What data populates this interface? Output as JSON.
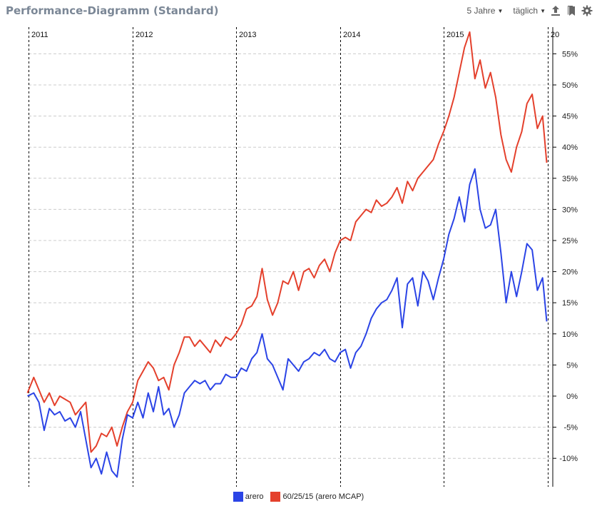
{
  "header": {
    "title": "Performance-Diagramm (Standard)",
    "period_label": "5 Jahre",
    "interval_label": "täglich",
    "icons": [
      "upload-icon",
      "bookmark-icon",
      "gear-icon"
    ]
  },
  "colors": {
    "arero": "#2b44e6",
    "mcap": "#e4402c",
    "grid": "#cccccc",
    "year_line": "#000000"
  },
  "chart_data": {
    "type": "line",
    "title": "Performance-Diagramm (Standard)",
    "xlabel": "",
    "ylabel": "",
    "x_ticks": [
      "2011",
      "2012",
      "2013",
      "2014",
      "2015",
      "20"
    ],
    "y_ticks": [
      "55%",
      "50%",
      "45%",
      "40%",
      "35%",
      "30%",
      "25%",
      "20%",
      "15%",
      "10%",
      "5%",
      "0%",
      "-5%",
      "-10%"
    ],
    "xlim": [
      2010.99,
      2015.99
    ],
    "ylim": [
      -14.5,
      59
    ],
    "grid": true,
    "legend_position": "bottom-center",
    "series": [
      {
        "name": "arero",
        "x": [
          2010.99,
          2011.05,
          2011.1,
          2011.15,
          2011.2,
          2011.25,
          2011.3,
          2011.35,
          2011.4,
          2011.45,
          2011.5,
          2011.55,
          2011.6,
          2011.65,
          2011.7,
          2011.75,
          2011.8,
          2011.85,
          2011.9,
          2011.95,
          2012.0,
          2012.05,
          2012.1,
          2012.15,
          2012.2,
          2012.25,
          2012.3,
          2012.35,
          2012.4,
          2012.45,
          2012.5,
          2012.55,
          2012.6,
          2012.65,
          2012.7,
          2012.75,
          2012.8,
          2012.85,
          2012.9,
          2012.95,
          2013.0,
          2013.05,
          2013.1,
          2013.15,
          2013.2,
          2013.25,
          2013.3,
          2013.35,
          2013.4,
          2013.45,
          2013.5,
          2013.55,
          2013.6,
          2013.65,
          2013.7,
          2013.75,
          2013.8,
          2013.85,
          2013.9,
          2013.95,
          2014.0,
          2014.05,
          2014.1,
          2014.15,
          2014.2,
          2014.25,
          2014.3,
          2014.35,
          2014.4,
          2014.45,
          2014.5,
          2014.55,
          2014.6,
          2014.65,
          2014.7,
          2014.75,
          2014.8,
          2014.85,
          2014.9,
          2014.95,
          2015.0,
          2015.05,
          2015.1,
          2015.15,
          2015.2,
          2015.25,
          2015.3,
          2015.35,
          2015.4,
          2015.45,
          2015.5,
          2015.55,
          2015.6,
          2015.65,
          2015.7,
          2015.75,
          2015.8,
          2015.85,
          2015.9,
          2015.95,
          2015.99
        ],
        "y": [
          0.0,
          0.5,
          -1.0,
          -5.5,
          -2.0,
          -3.0,
          -2.5,
          -4.0,
          -3.5,
          -5.0,
          -2.5,
          -7.0,
          -11.5,
          -10.0,
          -12.5,
          -9.0,
          -12.0,
          -13.0,
          -7.0,
          -3.0,
          -3.5,
          -1.0,
          -3.5,
          0.5,
          -2.5,
          1.5,
          -3.0,
          -2.0,
          -5.0,
          -3.0,
          0.5,
          1.5,
          2.5,
          2.0,
          2.5,
          1.0,
          2.0,
          2.0,
          3.5,
          3.0,
          3.0,
          4.5,
          4.0,
          6.0,
          7.0,
          10.0,
          6.0,
          5.0,
          3.0,
          1.0,
          6.0,
          5.0,
          4.0,
          5.5,
          6.0,
          7.0,
          6.5,
          7.5,
          6.0,
          5.5,
          7.0,
          7.5,
          4.5,
          7.0,
          8.0,
          10.0,
          12.5,
          14.0,
          15.0,
          15.5,
          17.0,
          19.0,
          11.0,
          18.0,
          19.0,
          14.5,
          20.0,
          18.5,
          15.5,
          19.0,
          22.0,
          26.0,
          28.5,
          32.0,
          28.0,
          34.0,
          36.5,
          30.0,
          27.0,
          27.5,
          30.0,
          23.0,
          15.0,
          20.0,
          16.0,
          20.0,
          24.5,
          23.5,
          17.0,
          19.0,
          12.0
        ]
      },
      {
        "name": "60/25/15 (arero MCAP)",
        "x": [
          2010.99,
          2011.05,
          2011.1,
          2011.15,
          2011.2,
          2011.25,
          2011.3,
          2011.35,
          2011.4,
          2011.45,
          2011.5,
          2011.55,
          2011.6,
          2011.65,
          2011.7,
          2011.75,
          2011.8,
          2011.85,
          2011.9,
          2011.95,
          2012.0,
          2012.05,
          2012.1,
          2012.15,
          2012.2,
          2012.25,
          2012.3,
          2012.35,
          2012.4,
          2012.45,
          2012.5,
          2012.55,
          2012.6,
          2012.65,
          2012.7,
          2012.75,
          2012.8,
          2012.85,
          2012.9,
          2012.95,
          2013.0,
          2013.05,
          2013.1,
          2013.15,
          2013.2,
          2013.25,
          2013.3,
          2013.35,
          2013.4,
          2013.45,
          2013.5,
          2013.55,
          2013.6,
          2013.65,
          2013.7,
          2013.75,
          2013.8,
          2013.85,
          2013.9,
          2013.95,
          2014.0,
          2014.05,
          2014.1,
          2014.15,
          2014.2,
          2014.25,
          2014.3,
          2014.35,
          2014.4,
          2014.45,
          2014.5,
          2014.55,
          2014.6,
          2014.65,
          2014.7,
          2014.75,
          2014.8,
          2014.85,
          2014.9,
          2014.95,
          2015.0,
          2015.05,
          2015.1,
          2015.15,
          2015.2,
          2015.25,
          2015.3,
          2015.35,
          2015.4,
          2015.45,
          2015.5,
          2015.55,
          2015.6,
          2015.65,
          2015.7,
          2015.75,
          2015.8,
          2015.85,
          2015.9,
          2015.95,
          2015.99
        ],
        "y": [
          0.5,
          3.0,
          1.0,
          -1.0,
          0.5,
          -1.5,
          0.0,
          -0.5,
          -1.0,
          -3.0,
          -2.0,
          -1.0,
          -9.0,
          -8.0,
          -6.0,
          -6.5,
          -5.0,
          -8.0,
          -5.0,
          -2.5,
          -1.0,
          2.5,
          4.0,
          5.5,
          4.5,
          2.5,
          3.0,
          1.0,
          5.0,
          7.0,
          9.5,
          9.5,
          8.0,
          9.0,
          8.0,
          7.0,
          9.0,
          8.0,
          9.5,
          9.0,
          10.0,
          11.5,
          14.0,
          14.5,
          16.0,
          20.5,
          15.5,
          13.0,
          15.0,
          18.5,
          18.0,
          20.0,
          17.0,
          20.0,
          20.5,
          19.0,
          21.0,
          22.0,
          20.0,
          23.0,
          25.0,
          25.5,
          25.0,
          28.0,
          29.0,
          30.0,
          29.5,
          31.5,
          30.5,
          31.0,
          32.0,
          33.5,
          31.0,
          34.5,
          33.0,
          35.0,
          36.0,
          37.0,
          38.0,
          40.5,
          42.5,
          45.0,
          48.0,
          52.0,
          56.0,
          58.5,
          51.0,
          54.0,
          49.5,
          52.0,
          48.0,
          42.0,
          38.0,
          36.0,
          40.0,
          42.5,
          47.0,
          48.5,
          43.0,
          45.0,
          37.5
        ]
      }
    ]
  }
}
